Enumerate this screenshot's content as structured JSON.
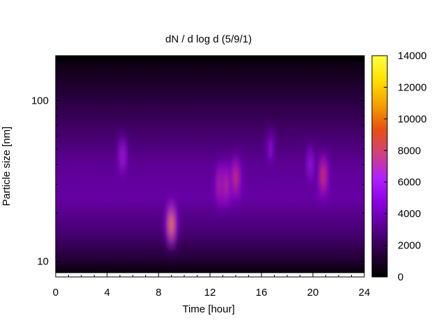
{
  "chart_data": {
    "type": "heatmap",
    "title": "dN / d log d (5/9/1)",
    "xlabel": "Time [hour]",
    "ylabel": "Particle size [nm]",
    "x_range": [
      0,
      24
    ],
    "x_ticks": [
      0,
      4,
      8,
      12,
      16,
      20,
      24
    ],
    "y_scale": "log",
    "y_range": [
      8,
      190
    ],
    "y_ticks": [
      10,
      100
    ],
    "colorbar": {
      "range": [
        0,
        14000
      ],
      "ticks": [
        0,
        2000,
        4000,
        6000,
        8000,
        10000,
        12000,
        14000
      ],
      "colormap": [
        "#000000",
        "#2a0040",
        "#5a0090",
        "#8a00e0",
        "#b020ff",
        "#d04080",
        "#e85010",
        "#f5a000",
        "#ffe000",
        "#ffff40"
      ]
    },
    "background_level": [
      {
        "d": 8.5,
        "value": 300
      },
      {
        "d": 10,
        "value": 1200
      },
      {
        "d": 15,
        "value": 2500
      },
      {
        "d": 25,
        "value": 3500
      },
      {
        "d": 40,
        "value": 3200
      },
      {
        "d": 70,
        "value": 2200
      },
      {
        "d": 120,
        "value": 1200
      },
      {
        "d": 180,
        "value": 400
      }
    ],
    "features": [
      {
        "time": 9.0,
        "diameter": 17,
        "value": 11000
      },
      {
        "time": 12.8,
        "diameter": 30,
        "value": 8000
      },
      {
        "time": 13.3,
        "diameter": 30,
        "value": 8000
      },
      {
        "time": 14.0,
        "diameter": 33,
        "value": 8500
      },
      {
        "time": 20.8,
        "diameter": 34,
        "value": 9000
      },
      {
        "time": 5.2,
        "diameter": 45,
        "value": 6500
      },
      {
        "time": 19.8,
        "diameter": 40,
        "value": 6000
      },
      {
        "time": 16.7,
        "diameter": 50,
        "value": 5500
      }
    ]
  }
}
